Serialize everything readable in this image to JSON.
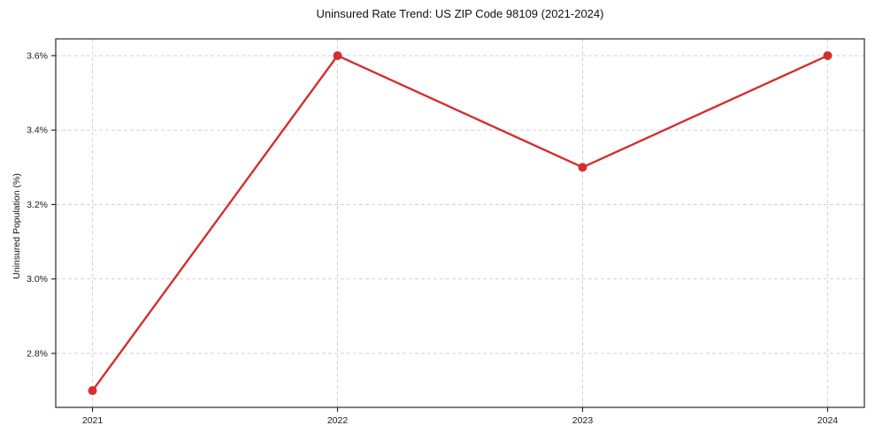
{
  "chart_data": {
    "type": "line",
    "title": "Uninsured Rate Trend: US ZIP Code 98109 (2021-2024)",
    "ylabel": "Uninsured Population (%)",
    "xlabel": "",
    "x": [
      2021,
      2022,
      2023,
      2024
    ],
    "values": [
      2.7,
      3.6,
      3.3,
      3.6
    ],
    "xticklabels": [
      "2021",
      "2022",
      "2023",
      "2024"
    ],
    "yticks": [
      2.8,
      3.0,
      3.2,
      3.4,
      3.6
    ],
    "yticklabels": [
      "2.8%",
      "3.0%",
      "3.2%",
      "3.4%",
      "3.6%"
    ],
    "xlim": [
      2020.85,
      2024.15
    ],
    "ylim": [
      2.655,
      3.645
    ],
    "grid": true,
    "grid_style": "dashed",
    "legend_position": "none",
    "line_color": "#d32f2f",
    "marker_color": "#d32f2f",
    "grid_color": "#d2d2d2",
    "spine_color": "#2b2b2b",
    "tick_color": "#2b2b2b",
    "tick_text_color": "#1a1a1a",
    "background_color": "#ffffff"
  }
}
